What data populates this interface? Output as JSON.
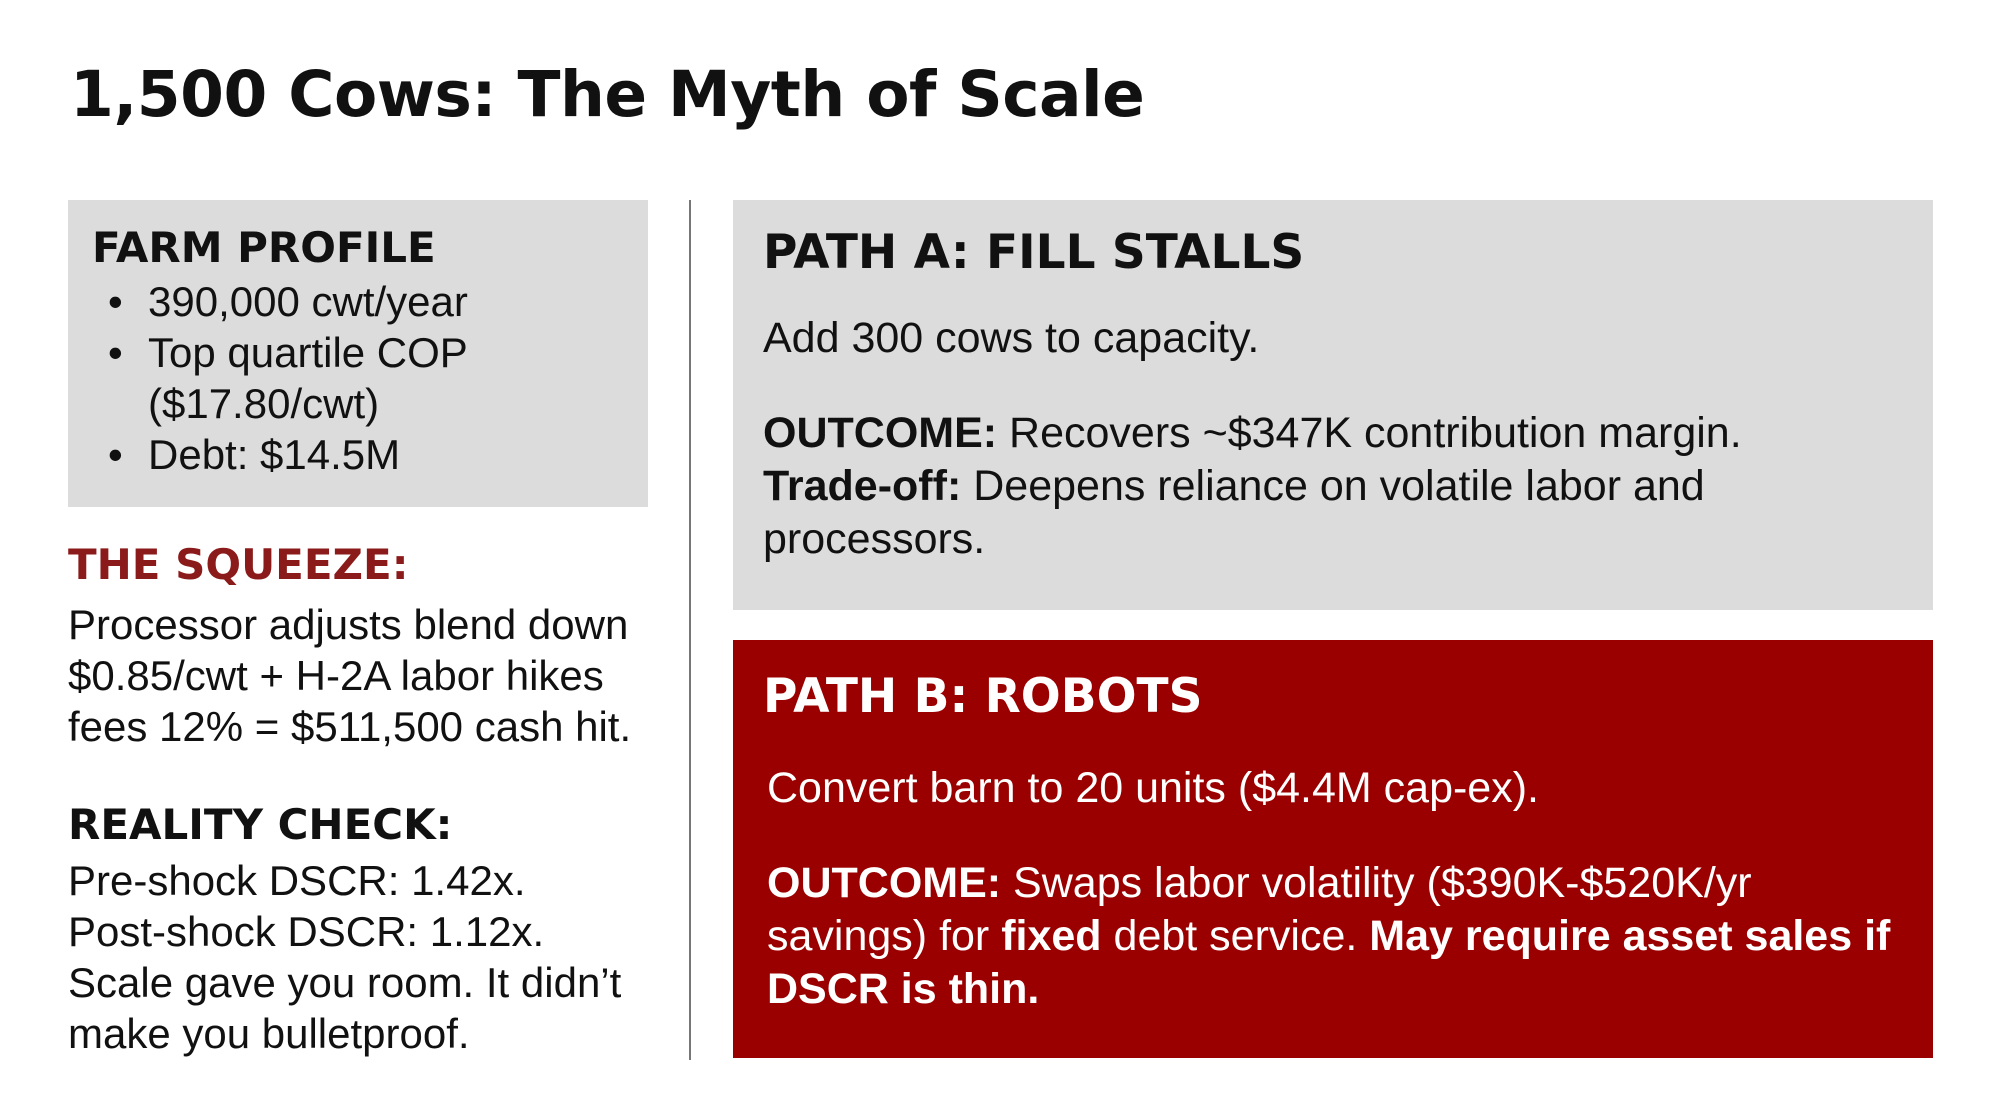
{
  "title": "1,500 Cows: The Myth of Scale",
  "farm_profile": {
    "heading": "FARM PROFILE",
    "items": [
      "390,000 cwt/year",
      "Top quartile COP ($17.80/cwt)",
      "Debt: $14.5M"
    ]
  },
  "squeeze": {
    "heading": "THE SQUEEZE:",
    "text": "Processor adjusts blend down $0.85/cwt + H-2A labor hikes fees 12% = $511,500 cash hit."
  },
  "reality": {
    "heading": "REALITY CHECK:",
    "line1": "Pre-shock DSCR: 1.42x.",
    "line2": "Post-shock DSCR: 1.12x.",
    "line3": "Scale gave you room. It didn’t make you bulletproof."
  },
  "path_a": {
    "heading": "PATH A: FILL STALLS",
    "lead": "Add 300 cows to capacity.",
    "outcome_label": "OUTCOME:",
    "outcome_text": "Recovers ~$347K contribution margin.",
    "tradeoff_label": "Trade-off:",
    "tradeoff_text": "Deepens reliance on volatile labor and processors."
  },
  "path_b": {
    "heading": "PATH B: ROBOTS",
    "lead": "Convert barn to 20 units ($4.4M cap-ex).",
    "outcome_label": "OUTCOME:",
    "outcome_text_1": "Swaps labor volatility ($390K-$520K/yr savings) for",
    "outcome_bold_1": "fixed",
    "outcome_text_2": "debt service.",
    "outcome_bold_2": "May require asset sales if DSCR is thin."
  },
  "colors": {
    "accent_red": "#9b0000",
    "heading_red": "#8b1a1a",
    "panel_gray": "#dcdcdc"
  }
}
